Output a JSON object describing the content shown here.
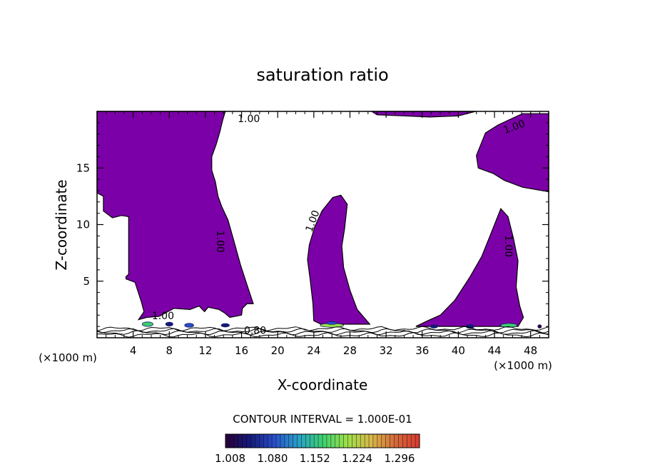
{
  "chart_data": {
    "type": "contour",
    "title": "saturation ratio",
    "xlabel": "X-coordinate",
    "ylabel": "Z-coordinate",
    "xunit_left": "(×1000 m)",
    "xunit_right": "(×1000 m)",
    "xlim": [
      0,
      50
    ],
    "ylim": [
      0,
      20
    ],
    "xticks": [
      4,
      8,
      12,
      16,
      20,
      24,
      28,
      32,
      36,
      40,
      44,
      48
    ],
    "yticks": [
      5,
      10,
      15
    ],
    "contour_interval_text": "CONTOUR INTERVAL = 1.000E-01",
    "contour_labels": [
      "1.00",
      "1.00",
      "1.00",
      "1.00",
      "1.00",
      "1.00",
      "0.80"
    ],
    "colorbar": {
      "labels": [
        "1.008",
        "1.080",
        "1.152",
        "1.224",
        "1.296"
      ],
      "values": [
        1.008,
        1.08,
        1.152,
        1.224,
        1.296
      ],
      "range": [
        1.0,
        1.33
      ]
    },
    "colors": {
      "supersaturated": "#7c00a8",
      "contour_line": "#000000",
      "colorbar_stops": [
        "#2a003a",
        "#141a7a",
        "#2a4ec8",
        "#2aa0c8",
        "#3cd070",
        "#9ce04a",
        "#d8b84a",
        "#d46a3a",
        "#d83a30"
      ]
    },
    "regions": [
      {
        "name": "left-tall-plume",
        "polygon": [
          [
            0,
            12.8
          ],
          [
            0.7,
            12.5
          ],
          [
            0.7,
            11.2
          ],
          [
            1.7,
            10.6
          ],
          [
            2.7,
            10.8
          ],
          [
            3.5,
            10.7
          ],
          [
            3.5,
            5.6
          ],
          [
            3.2,
            5.4
          ],
          [
            3.2,
            5.2
          ],
          [
            4.2,
            4.9
          ],
          [
            4.9,
            3.2
          ],
          [
            5.2,
            2.3
          ],
          [
            4.6,
            1.6
          ],
          [
            5.5,
            1.8
          ],
          [
            6.9,
            1.9
          ],
          [
            8.5,
            2.6
          ],
          [
            10.3,
            2.5
          ],
          [
            11.3,
            2.8
          ],
          [
            11.9,
            2.3
          ],
          [
            12.3,
            2.7
          ],
          [
            13.5,
            2.5
          ],
          [
            14.1,
            2.2
          ],
          [
            14.7,
            1.8
          ],
          [
            16.0,
            2.0
          ],
          [
            16.1,
            2.6
          ],
          [
            16.6,
            3.0
          ],
          [
            17.3,
            3.0
          ],
          [
            16.8,
            4.2
          ],
          [
            15.9,
            6.4
          ],
          [
            15.1,
            8.7
          ],
          [
            14.5,
            10.4
          ],
          [
            13.8,
            11.6
          ],
          [
            13.4,
            12.5
          ],
          [
            13.1,
            13.8
          ],
          [
            12.7,
            14.8
          ],
          [
            12.7,
            16.0
          ],
          [
            13.2,
            17.1
          ],
          [
            13.6,
            18.2
          ],
          [
            13.9,
            19.2
          ],
          [
            14.2,
            20.0
          ],
          [
            0,
            20.0
          ]
        ]
      },
      {
        "name": "middle-plume",
        "polygon": [
          [
            24.0,
            1.5
          ],
          [
            23.9,
            3.0
          ],
          [
            23.6,
            5.1
          ],
          [
            23.3,
            6.9
          ],
          [
            23.5,
            8.2
          ],
          [
            24.1,
            9.8
          ],
          [
            24.9,
            11.2
          ],
          [
            26.1,
            12.4
          ],
          [
            27.0,
            12.6
          ],
          [
            27.7,
            11.8
          ],
          [
            27.4,
            9.6
          ],
          [
            27.1,
            8.1
          ],
          [
            27.3,
            6.2
          ],
          [
            28.0,
            4.2
          ],
          [
            28.8,
            2.5
          ],
          [
            30.2,
            1.2
          ],
          [
            24.8,
            1.2
          ]
        ]
      },
      {
        "name": "right-plume",
        "polygon": [
          [
            35.3,
            1.0
          ],
          [
            36.6,
            1.5
          ],
          [
            38.0,
            2.0
          ],
          [
            39.6,
            3.3
          ],
          [
            41.3,
            5.4
          ],
          [
            42.6,
            7.2
          ],
          [
            43.6,
            9.2
          ],
          [
            44.7,
            11.4
          ],
          [
            45.5,
            10.7
          ],
          [
            46.1,
            8.8
          ],
          [
            46.6,
            6.8
          ],
          [
            46.4,
            4.5
          ],
          [
            46.8,
            2.8
          ],
          [
            47.2,
            1.8
          ],
          [
            46.6,
            1.0
          ],
          [
            42.0,
            1.0
          ]
        ]
      },
      {
        "name": "top-right-cap",
        "polygon": [
          [
            42.2,
            15.0
          ],
          [
            42.0,
            16.1
          ],
          [
            43.0,
            18.1
          ],
          [
            44.4,
            18.8
          ],
          [
            46.0,
            19.4
          ],
          [
            47.1,
            19.8
          ],
          [
            50.0,
            19.8
          ],
          [
            50.0,
            12.9
          ],
          [
            47.1,
            13.3
          ],
          [
            45.1,
            13.9
          ],
          [
            43.9,
            14.5
          ]
        ]
      },
      {
        "name": "top-middle-strip",
        "polygon": [
          [
            30.4,
            20.0
          ],
          [
            31.0,
            19.7
          ],
          [
            34.0,
            19.6
          ],
          [
            36.8,
            19.5
          ],
          [
            40.0,
            19.6
          ],
          [
            41.9,
            20.0
          ]
        ]
      }
    ],
    "cells": [
      {
        "x": 5.6,
        "z": 1.2,
        "w": 1.2,
        "h": 0.4,
        "level": 1.15
      },
      {
        "x": 8.0,
        "z": 1.2,
        "w": 0.8,
        "h": 0.35,
        "level": 1.06
      },
      {
        "x": 10.2,
        "z": 1.1,
        "w": 1.0,
        "h": 0.35,
        "level": 1.1
      },
      {
        "x": 14.2,
        "z": 1.1,
        "w": 0.9,
        "h": 0.3,
        "level": 1.03
      },
      {
        "x": 26.0,
        "z": 1.1,
        "w": 2.6,
        "h": 0.35,
        "level": 1.2
      },
      {
        "x": 26.0,
        "z": 1.3,
        "w": 1.2,
        "h": 0.25,
        "level": 1.1
      },
      {
        "x": 37.3,
        "z": 1.0,
        "w": 0.8,
        "h": 0.3,
        "level": 1.05
      },
      {
        "x": 41.3,
        "z": 1.0,
        "w": 0.9,
        "h": 0.35,
        "level": 1.03
      },
      {
        "x": 45.6,
        "z": 1.1,
        "w": 1.8,
        "h": 0.35,
        "level": 1.15
      },
      {
        "x": 49.0,
        "z": 1.0,
        "w": 0.4,
        "h": 0.3,
        "level": 1.02
      }
    ]
  }
}
